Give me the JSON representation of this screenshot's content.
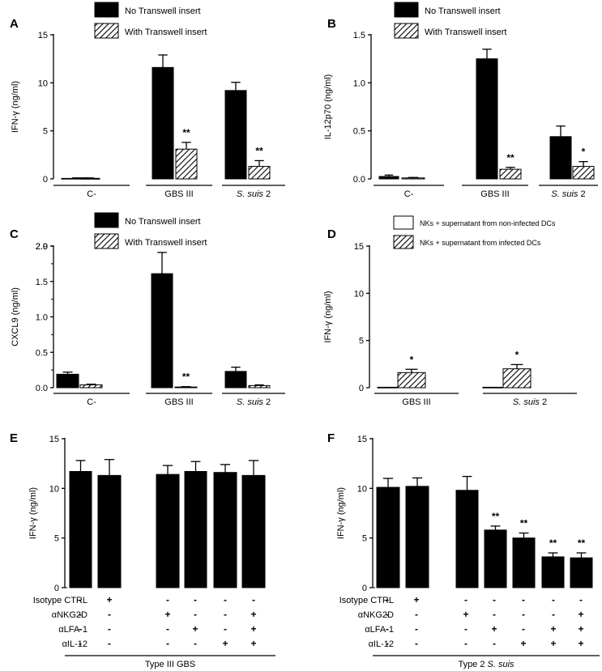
{
  "chart_data": [
    {
      "id": "A",
      "panel_label": "A",
      "type": "bar",
      "ylabel": "IFN-γ (ng/ml)",
      "ylim": [
        0,
        15
      ],
      "yticks": [
        0,
        5,
        10,
        15
      ],
      "legend": [
        "No Transwell insert",
        "With Transwell insert"
      ],
      "groups": [
        {
          "label": "C-",
          "italic": "",
          "suffix": ""
        },
        {
          "label": "GBS III",
          "italic": "",
          "suffix": ""
        },
        {
          "label": "",
          "italic": "S. suis",
          "suffix": " 2"
        }
      ],
      "series": [
        {
          "name": "No Transwell insert",
          "fill": "solid",
          "values": [
            0.05,
            11.6,
            9.2
          ],
          "errors": [
            0.05,
            1.3,
            0.85
          ],
          "sig": [
            "",
            "",
            ""
          ]
        },
        {
          "name": "With Transwell insert",
          "fill": "hatch",
          "values": [
            0.05,
            3.1,
            1.3
          ],
          "errors": [
            0.05,
            0.7,
            0.6
          ],
          "sig": [
            "",
            "**",
            "**"
          ]
        }
      ]
    },
    {
      "id": "B",
      "panel_label": "B",
      "type": "bar",
      "ylabel": "IL-12p70 (ng/ml)",
      "ylim": [
        0,
        1.5
      ],
      "yticks": [
        0.0,
        0.5,
        1.0,
        1.5
      ],
      "yticklabels": [
        "0.0",
        "0.5",
        "1.0",
        "1.5"
      ],
      "legend": [
        "No Transwell insert",
        "With Transwell insert"
      ],
      "groups": [
        {
          "label": "C-",
          "italic": "",
          "suffix": ""
        },
        {
          "label": "GBS III",
          "italic": "",
          "suffix": ""
        },
        {
          "label": "",
          "italic": "S. suis",
          "suffix": " 2"
        }
      ],
      "series": [
        {
          "name": "No Transwell insert",
          "fill": "solid",
          "values": [
            0.025,
            1.25,
            0.44
          ],
          "errors": [
            0.015,
            0.1,
            0.11
          ],
          "sig": [
            "",
            "",
            ""
          ]
        },
        {
          "name": "With Transwell insert",
          "fill": "hatch",
          "values": [
            0.01,
            0.1,
            0.13
          ],
          "errors": [
            0.005,
            0.02,
            0.05
          ],
          "sig": [
            "",
            "**",
            "*"
          ]
        }
      ]
    },
    {
      "id": "C",
      "panel_label": "C",
      "type": "bar",
      "ylabel": "CXCL9 (ng/ml)",
      "ylim": [
        0,
        2.0
      ],
      "yticks": [
        0.0,
        0.5,
        1.0,
        1.5,
        2.0
      ],
      "yticklabels": [
        "0.0",
        "0.5",
        "1.0",
        "1.5",
        "2.0"
      ],
      "yticks_minor": [
        0.25,
        0.75,
        1.25,
        1.75
      ],
      "extra_tick": {
        "value": 2.9,
        "label": "2.9"
      },
      "legend": [
        "No Transwell insert",
        "With Transwell insert"
      ],
      "groups": [
        {
          "label": "C-",
          "italic": "",
          "suffix": ""
        },
        {
          "label": "GBS III",
          "italic": "",
          "suffix": ""
        },
        {
          "label": "",
          "italic": "S. suis",
          "suffix": " 2"
        }
      ],
      "series": [
        {
          "name": "No Transwell insert",
          "fill": "solid",
          "values": [
            0.19,
            1.61,
            0.23
          ],
          "errors": [
            0.03,
            0.3,
            0.06
          ],
          "sig": [
            "",
            "",
            ""
          ]
        },
        {
          "name": "With Transwell insert",
          "fill": "hatch",
          "values": [
            0.04,
            0.01,
            0.03
          ],
          "errors": [
            0.01,
            0.005,
            0.01
          ],
          "sig": [
            "",
            "**",
            ""
          ]
        }
      ]
    },
    {
      "id": "D",
      "panel_label": "D",
      "type": "bar",
      "ylabel": "IFN-γ (ng/ml)",
      "ylim": [
        0,
        15
      ],
      "yticks": [
        0,
        5,
        10,
        15
      ],
      "legend": [
        "NKs + supernatant from non-infected DCs",
        "NKs + supernatant from infected DCs"
      ],
      "groups": [
        {
          "label": "GBS III",
          "italic": "",
          "suffix": ""
        },
        {
          "label": "",
          "italic": "S. suis",
          "suffix": " 2"
        }
      ],
      "series": [
        {
          "name": "NKs + supernatant from non-infected DCs",
          "fill": "empty",
          "values": [
            0.05,
            0.05
          ],
          "errors": [
            0,
            0
          ],
          "sig": [
            "",
            ""
          ]
        },
        {
          "name": "NKs + supernatant from infected DCs",
          "fill": "hatch",
          "values": [
            1.6,
            2.0
          ],
          "errors": [
            0.35,
            0.45
          ],
          "sig": [
            "*",
            "*"
          ]
        }
      ]
    },
    {
      "id": "E",
      "panel_label": "E",
      "type": "bar",
      "ylabel": "IFN-γ (ng/ml)",
      "ylim": [
        0,
        15
      ],
      "yticks": [
        0,
        5,
        10,
        15
      ],
      "values": [
        11.7,
        11.3,
        11.4,
        11.7,
        11.6,
        11.3
      ],
      "errors": [
        1.1,
        1.6,
        0.9,
        1.0,
        0.8,
        1.5
      ],
      "sig": [
        "",
        "",
        "",
        "",
        "",
        ""
      ],
      "rows": [
        {
          "label": "Isotype CTRL",
          "marks": [
            "-",
            "+",
            "-",
            "-",
            "-",
            "-"
          ]
        },
        {
          "label": "αNKG2D",
          "marks": [
            "-",
            "-",
            "+",
            "-",
            "-",
            "+"
          ]
        },
        {
          "label": "αLFA-1",
          "marks": [
            "-",
            "-",
            "-",
            "+",
            "-",
            "+"
          ]
        },
        {
          "label": "αIL-12",
          "marks": [
            "-",
            "-",
            "-",
            "-",
            "+",
            "+"
          ]
        }
      ],
      "footer": {
        "text": "Type III GBS",
        "italic": ""
      }
    },
    {
      "id": "F",
      "panel_label": "F",
      "type": "bar",
      "ylabel": "IFN-γ (ng/ml)",
      "ylim": [
        0,
        15
      ],
      "yticks": [
        0,
        5,
        10,
        15
      ],
      "values": [
        10.1,
        10.2,
        9.8,
        5.8,
        5.0,
        3.1,
        3.0
      ],
      "errors": [
        0.9,
        0.85,
        1.4,
        0.4,
        0.5,
        0.4,
        0.5
      ],
      "sig": [
        "",
        "",
        "",
        "**",
        "**",
        "**",
        "**"
      ],
      "rows": [
        {
          "label": "Isotype CTRL",
          "marks": [
            "-",
            "+",
            "-",
            "-",
            "-",
            "-",
            "-"
          ]
        },
        {
          "label": "αNKG2D",
          "marks": [
            "-",
            "-",
            "+",
            "-",
            "-",
            "-",
            "+"
          ]
        },
        {
          "label": "αLFA-1",
          "marks": [
            "-",
            "-",
            "-",
            "+",
            "-",
            "+",
            "+"
          ]
        },
        {
          "label": "αIL-12",
          "marks": [
            "-",
            "-",
            "-",
            "-",
            "+",
            "+",
            "+"
          ]
        }
      ],
      "footer": {
        "text": "Type 2 ",
        "italic": "S. suis"
      }
    }
  ]
}
